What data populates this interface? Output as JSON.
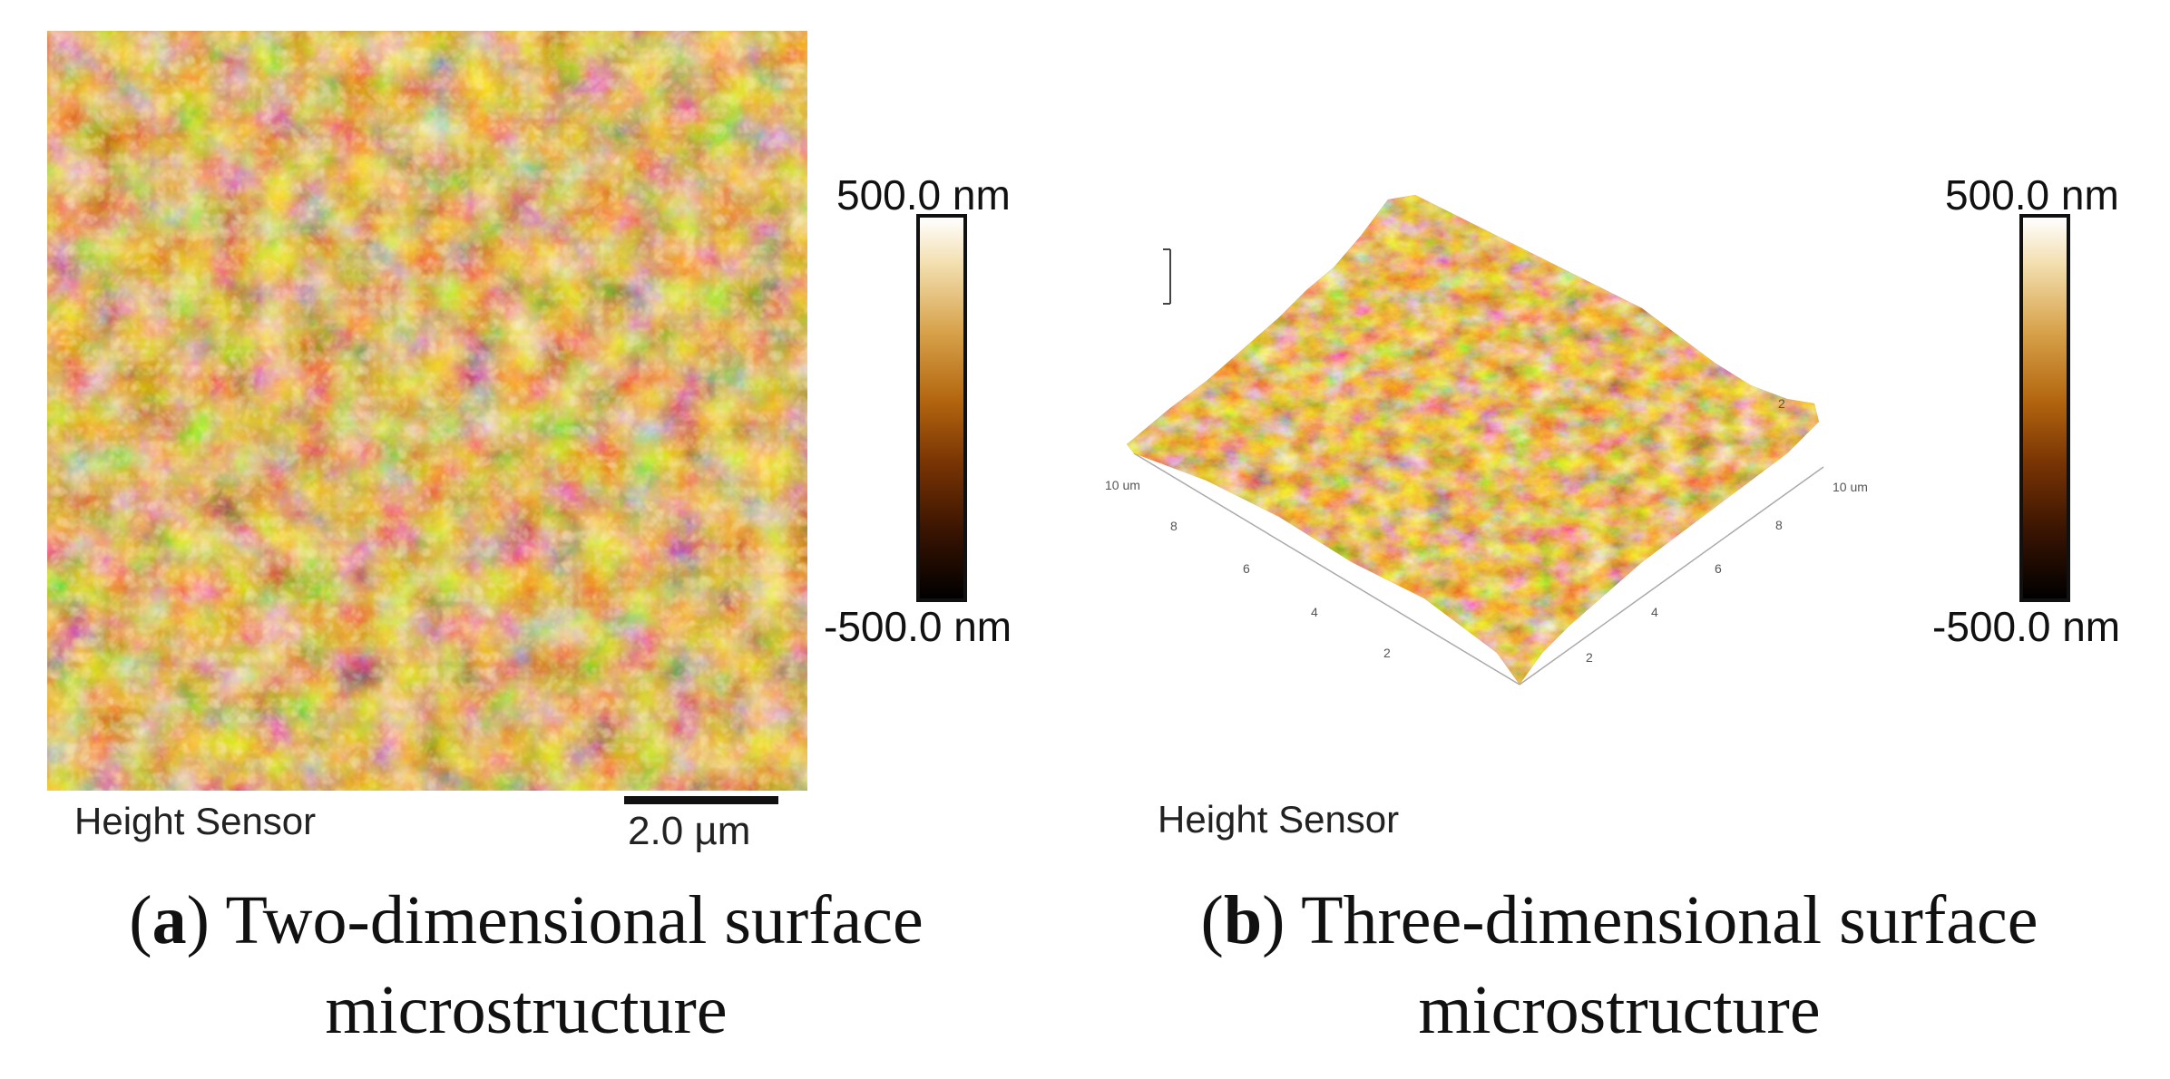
{
  "panel_a": {
    "sensor_label": "Height Sensor",
    "scale_bar_label": "2.0 µm",
    "colorbar_max": "500.0 nm",
    "colorbar_min": "-500.0 nm",
    "caption_letter": "a",
    "caption_line1": "Two-dimensional surface",
    "caption_line2": "microstructure"
  },
  "panel_b": {
    "sensor_label": "Height Sensor",
    "colorbar_max": "500.0 nm",
    "colorbar_min": "-500.0 nm",
    "axis_left_end": "10 um",
    "axis_right_end": "10 um",
    "ticks_left": [
      "8",
      "6",
      "4",
      "2"
    ],
    "ticks_right": [
      "8",
      "6",
      "4",
      "2"
    ],
    "tick_top_right": "2",
    "caption_letter": "b",
    "caption_line1": "Three-dimensional surface",
    "caption_line2": "microstructure"
  }
}
